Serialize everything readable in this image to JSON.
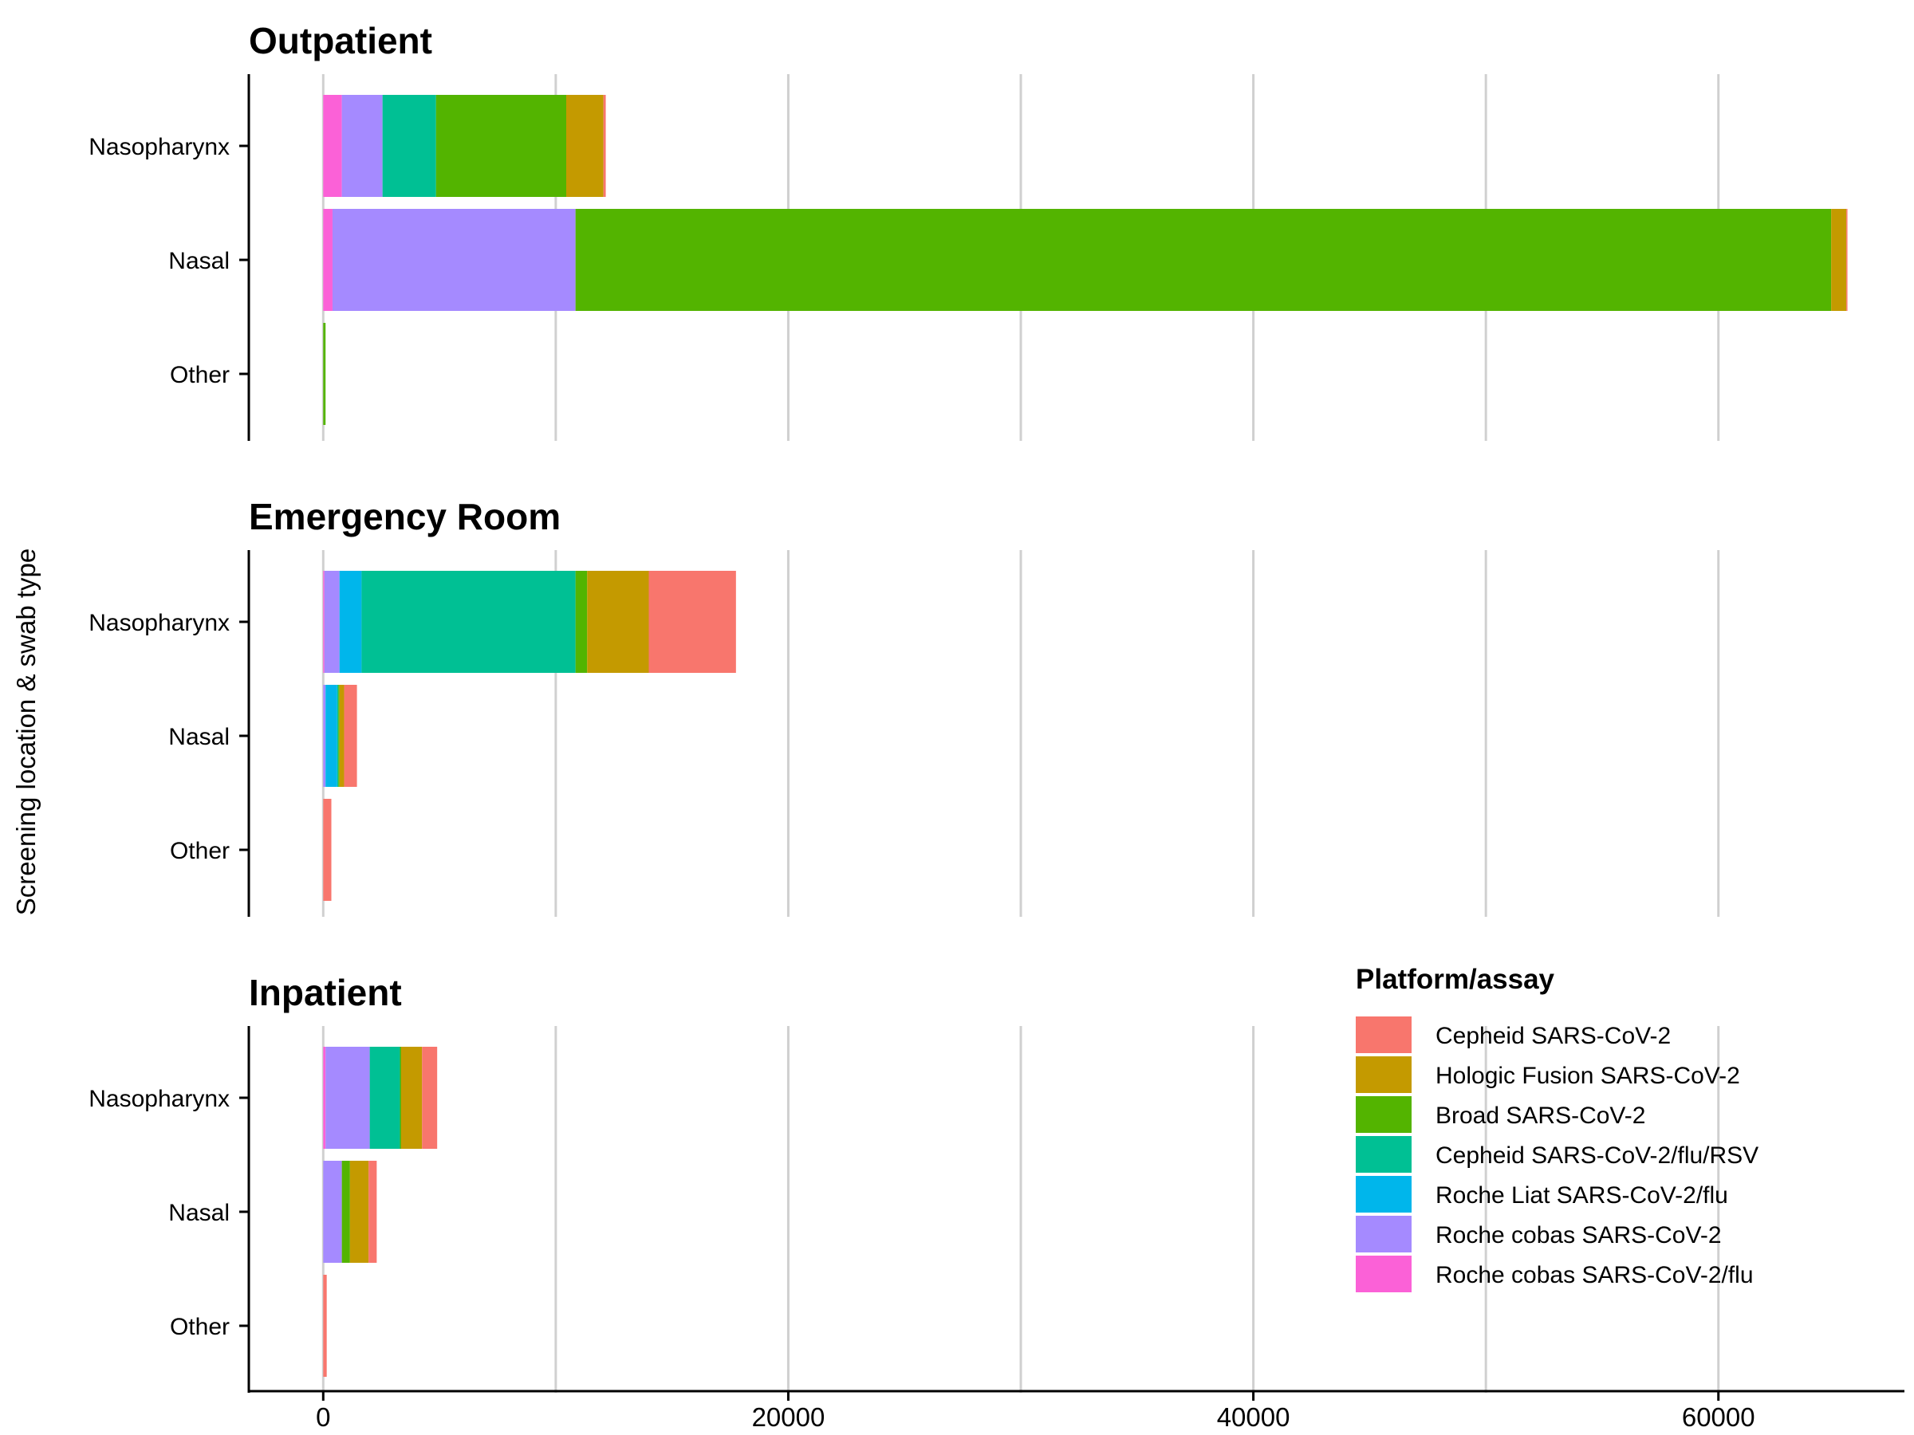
{
  "chart_data": {
    "type": "bar",
    "orientation": "horizontal",
    "stacked": true,
    "ylabel": "Screening location & swab type",
    "xlabel": "",
    "xlim": [
      -3200,
      68000
    ],
    "xticks": [
      0,
      20000,
      40000,
      60000
    ],
    "xtick_labels": [
      "0",
      "20000",
      "40000",
      "60000"
    ],
    "grid": "vertical major and minor lines every 10000",
    "legend": {
      "title": "Platform/assay",
      "placement": "bottom-right"
    },
    "series": [
      {
        "name": "Cepheid SARS-CoV-2",
        "color": "#F8766D"
      },
      {
        "name": "Hologic Fusion SARS-CoV-2",
        "color": "#C49A00"
      },
      {
        "name": "Broad SARS-CoV-2",
        "color": "#53B400"
      },
      {
        "name": "Cepheid SARS-CoV-2/flu/RSV",
        "color": "#00C094"
      },
      {
        "name": "Roche Liat SARS-CoV-2/flu",
        "color": "#00B6EB"
      },
      {
        "name": "Roche cobas SARS-CoV-2",
        "color": "#A58AFF"
      },
      {
        "name": "Roche cobas SARS-CoV-2/flu",
        "color": "#FB61D7"
      }
    ],
    "stack_order_from_zero": [
      "Roche cobas SARS-CoV-2/flu",
      "Roche cobas SARS-CoV-2",
      "Roche Liat SARS-CoV-2/flu",
      "Cepheid SARS-CoV-2/flu/RSV",
      "Broad SARS-CoV-2",
      "Hologic Fusion SARS-CoV-2",
      "Cepheid SARS-CoV-2"
    ],
    "panels": [
      {
        "title": "Outpatient",
        "categories": [
          "Nasopharynx",
          "Nasal",
          "Other"
        ],
        "values": {
          "Nasopharynx": {
            "Roche cobas SARS-CoV-2/flu": 800,
            "Roche cobas SARS-CoV-2": 1750,
            "Roche Liat SARS-CoV-2/flu": 0,
            "Cepheid SARS-CoV-2/flu/RSV": 2300,
            "Broad SARS-CoV-2": 5600,
            "Hologic Fusion SARS-CoV-2": 1600,
            "Cepheid SARS-CoV-2": 100
          },
          "Nasal": {
            "Roche cobas SARS-CoV-2/flu": 400,
            "Roche cobas SARS-CoV-2": 10450,
            "Roche Liat SARS-CoV-2/flu": 0,
            "Cepheid SARS-CoV-2/flu/RSV": 0,
            "Broad SARS-CoV-2": 54000,
            "Hologic Fusion SARS-CoV-2": 650,
            "Cepheid SARS-CoV-2": 50
          },
          "Other": {
            "Roche cobas SARS-CoV-2/flu": 0,
            "Roche cobas SARS-CoV-2": 0,
            "Roche Liat SARS-CoV-2/flu": 0,
            "Cepheid SARS-CoV-2/flu/RSV": 0,
            "Broad SARS-CoV-2": 100,
            "Hologic Fusion SARS-CoV-2": 0,
            "Cepheid SARS-CoV-2": 0
          }
        }
      },
      {
        "title": "Emergency Room",
        "categories": [
          "Nasopharynx",
          "Nasal",
          "Other"
        ],
        "values": {
          "Nasopharynx": {
            "Roche cobas SARS-CoV-2/flu": 50,
            "Roche cobas SARS-CoV-2": 650,
            "Roche Liat SARS-CoV-2/flu": 950,
            "Cepheid SARS-CoV-2/flu/RSV": 9200,
            "Broad SARS-CoV-2": 500,
            "Hologic Fusion SARS-CoV-2": 2650,
            "Cepheid SARS-CoV-2": 3750
          },
          "Nasal": {
            "Roche cobas SARS-CoV-2/flu": 0,
            "Roche cobas SARS-CoV-2": 100,
            "Roche Liat SARS-CoV-2/flu": 500,
            "Cepheid SARS-CoV-2/flu/RSV": 50,
            "Broad SARS-CoV-2": 50,
            "Hologic Fusion SARS-CoV-2": 200,
            "Cepheid SARS-CoV-2": 550
          },
          "Other": {
            "Roche cobas SARS-CoV-2/flu": 0,
            "Roche cobas SARS-CoV-2": 0,
            "Roche Liat SARS-CoV-2/flu": 0,
            "Cepheid SARS-CoV-2/flu/RSV": 0,
            "Broad SARS-CoV-2": 0,
            "Hologic Fusion SARS-CoV-2": 0,
            "Cepheid SARS-CoV-2": 350
          }
        }
      },
      {
        "title": "Inpatient",
        "categories": [
          "Nasopharynx",
          "Nasal",
          "Other"
        ],
        "values": {
          "Nasopharynx": {
            "Roche cobas SARS-CoV-2/flu": 100,
            "Roche cobas SARS-CoV-2": 1900,
            "Roche Liat SARS-CoV-2/flu": 0,
            "Cepheid SARS-CoV-2/flu/RSV": 1300,
            "Broad SARS-CoV-2": 50,
            "Hologic Fusion SARS-CoV-2": 900,
            "Cepheid SARS-CoV-2": 650
          },
          "Nasal": {
            "Roche cobas SARS-CoV-2/flu": 0,
            "Roche cobas SARS-CoV-2": 800,
            "Roche Liat SARS-CoV-2/flu": 0,
            "Cepheid SARS-CoV-2/flu/RSV": 0,
            "Broad SARS-CoV-2": 350,
            "Hologic Fusion SARS-CoV-2": 800,
            "Cepheid SARS-CoV-2": 350
          },
          "Other": {
            "Roche cobas SARS-CoV-2/flu": 0,
            "Roche cobas SARS-CoV-2": 0,
            "Roche Liat SARS-CoV-2/flu": 0,
            "Cepheid SARS-CoV-2/flu/RSV": 0,
            "Broad SARS-CoV-2": 0,
            "Hologic Fusion SARS-CoV-2": 0,
            "Cepheid SARS-CoV-2": 150
          }
        }
      }
    ]
  }
}
